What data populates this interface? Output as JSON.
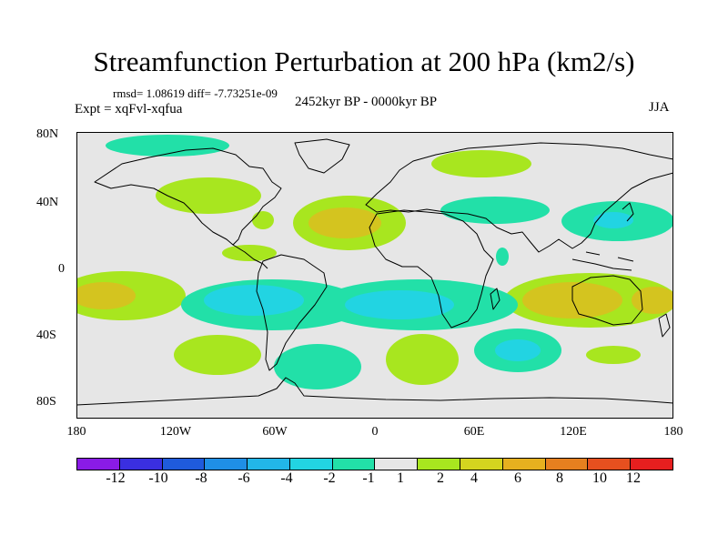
{
  "title": "Streamfunction Perturbation at 200 hPa (km2/s)",
  "stats": "rmsd= 1.08619 diff= -7.73251e-09",
  "expt": "Expt = xqFvl-xqfua",
  "period": "2452kyr BP - 0000kyr BP",
  "season": "JJA",
  "lat_labels": [
    "80N",
    "40N",
    "0",
    "40S",
    "80S"
  ],
  "lon_labels": [
    "180",
    "120W",
    "60W",
    "0",
    "60E",
    "120E",
    "180"
  ],
  "colorbar": {
    "labels": [
      "-12",
      "-10",
      "-8",
      "-6",
      "-4",
      "-2",
      "-1",
      "1",
      "2",
      "4",
      "6",
      "8",
      "10",
      "12"
    ],
    "colors": [
      "#8a1be6",
      "#3a2fe0",
      "#1f5bdc",
      "#1f8fe6",
      "#22b6e8",
      "#22d4e2",
      "#22e0a8",
      "#e6e6e6",
      "#a8e61f",
      "#d4d41f",
      "#e6b01f",
      "#e6801f",
      "#e6501f",
      "#e61f1f"
    ]
  },
  "map": {
    "lon_range": [
      -180,
      180
    ],
    "lat_range": [
      -90,
      90
    ],
    "background": "#e6e6e6",
    "anomaly_colors": {
      "pos1": "#a8e61f",
      "pos2": "#d4c41f",
      "neg1": "#22e0a8",
      "neg2": "#22d4e2"
    }
  }
}
